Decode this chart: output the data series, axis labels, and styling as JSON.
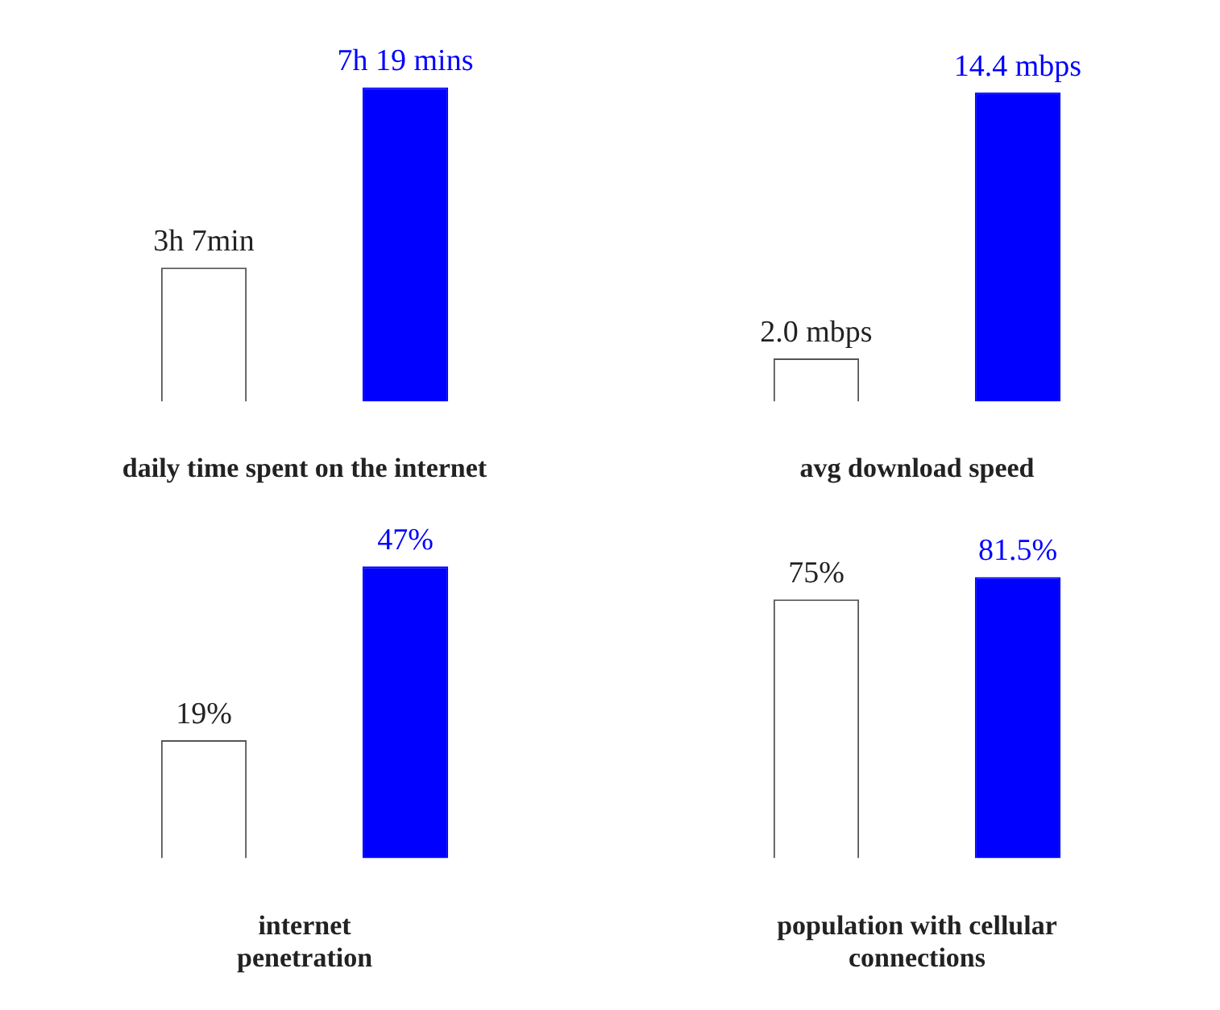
{
  "chart_data": [
    {
      "type": "bar",
      "xlabel": "daily time spent on the internet",
      "categories": [
        null,
        null
      ],
      "values": [
        3.117,
        7.317
      ],
      "colors": [
        "#ffffff",
        "#0000ff"
      ],
      "value_labels": [
        "3h 7min",
        "7h 19 mins"
      ]
    },
    {
      "type": "bar",
      "xlabel": "avg download speed",
      "categories": [
        null,
        null
      ],
      "values": [
        2.0,
        14.4
      ],
      "colors": [
        "#ffffff",
        "#0000ff"
      ],
      "value_labels": [
        "2.0 mbps",
        "14.4 mbps"
      ]
    },
    {
      "type": "bar",
      "xlabel": "internet\npenetration",
      "categories": [
        null,
        null
      ],
      "values": [
        19,
        47
      ],
      "colors": [
        "#ffffff",
        "#0000ff"
      ],
      "value_labels": [
        "19%",
        "47%"
      ]
    },
    {
      "type": "bar",
      "xlabel": "population with cellular\nconnections",
      "categories": [
        null,
        null
      ],
      "values": [
        75,
        81.5
      ],
      "colors": [
        "#ffffff",
        "#0000ff"
      ],
      "value_labels": [
        "75%",
        "81.5%"
      ]
    }
  ]
}
